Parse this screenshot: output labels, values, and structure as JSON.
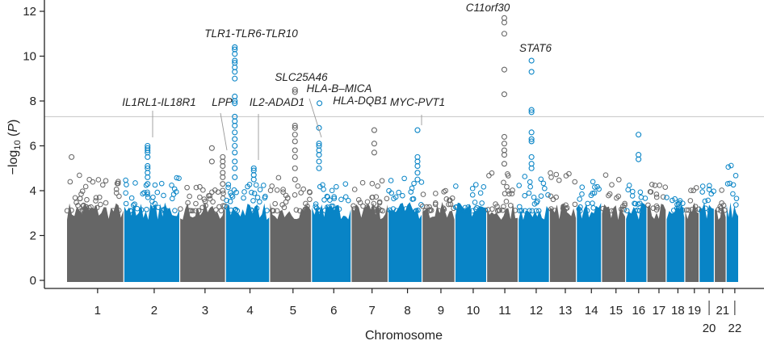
{
  "chart_data": {
    "type": "scatter",
    "xlabel": "Chromosome",
    "ylabel": "-log10 (P)",
    "ylim": [
      0,
      12.5
    ],
    "yticks": [
      0,
      2,
      4,
      6,
      8,
      10,
      12
    ],
    "significance_threshold": 7.3,
    "colors": {
      "odd": "#666666",
      "even": "#0884c6",
      "threshold": "#cccccc"
    },
    "grid": false,
    "chromosomes": [
      {
        "label": "1",
        "length_mb": 249,
        "bulk_max": 4.7
      },
      {
        "label": "2",
        "length_mb": 243,
        "bulk_max": 4.6
      },
      {
        "label": "3",
        "length_mb": 198,
        "bulk_max": 4.2
      },
      {
        "label": "4",
        "length_mb": 191,
        "bulk_max": 4.4
      },
      {
        "label": "5",
        "length_mb": 181,
        "bulk_max": 4.6
      },
      {
        "label": "6",
        "length_mb": 171,
        "bulk_max": 4.8
      },
      {
        "label": "7",
        "length_mb": 159,
        "bulk_max": 4.5
      },
      {
        "label": "8",
        "length_mb": 146,
        "bulk_max": 4.6
      },
      {
        "label": "9",
        "length_mb": 141,
        "bulk_max": 4.2
      },
      {
        "label": "10",
        "length_mb": 136,
        "bulk_max": 4.4
      },
      {
        "label": "11",
        "length_mb": 135,
        "bulk_max": 4.9
      },
      {
        "label": "12",
        "length_mb": 134,
        "bulk_max": 4.7
      },
      {
        "label": "13",
        "length_mb": 115,
        "bulk_max": 5.1
      },
      {
        "label": "14",
        "length_mb": 107,
        "bulk_max": 4.6
      },
      {
        "label": "15",
        "length_mb": 102,
        "bulk_max": 4.9
      },
      {
        "label": "16",
        "length_mb": 90,
        "bulk_max": 4.4
      },
      {
        "label": "17",
        "length_mb": 81,
        "bulk_max": 4.3
      },
      {
        "label": "18",
        "length_mb": 78,
        "bulk_max": 5.2
      },
      {
        "label": "19",
        "length_mb": 59,
        "bulk_max": 4.3
      },
      {
        "label": "20",
        "length_mb": 63,
        "bulk_max": 4.5
      },
      {
        "label": "21",
        "length_mb": 48,
        "bulk_max": 4.2
      },
      {
        "label": "22",
        "length_mb": 51,
        "bulk_max": 5.7
      }
    ],
    "hits": [
      {
        "chr": "1",
        "pos_mb": 20,
        "values": [
          5.5
        ]
      },
      {
        "chr": "3",
        "pos_mb": 140,
        "values": [
          5.9,
          5.3
        ]
      },
      {
        "chr": "7",
        "pos_mb": 100,
        "values": [
          6.7,
          6.1,
          5.7
        ]
      },
      {
        "chr": "16",
        "pos_mb": 55,
        "values": [
          6.5,
          5.6,
          5.4
        ]
      },
      {
        "chr": "2",
        "pos_mb": 103,
        "gene": "IL1RL1-IL18R1",
        "values": [
          6.0,
          5.9,
          5.8,
          5.7,
          5.5,
          5.1,
          5.0,
          4.8,
          4.6,
          4.3
        ]
      },
      {
        "chr": "3",
        "pos_mb": 188,
        "gene": "LPP",
        "values": [
          5.5,
          5.3,
          5.1,
          4.8,
          4.6,
          4.3,
          4.0
        ]
      },
      {
        "chr": "4",
        "pos_mb": 39,
        "gene": "TLR1-TLR6-TLR10",
        "values": [
          10.4,
          10.3,
          10.1,
          9.8,
          9.7,
          9.5,
          9.3,
          9.0,
          8.2,
          8.0,
          7.9,
          7.3,
          7.1,
          6.9,
          6.6,
          6.3,
          6.0,
          5.7,
          5.3,
          5.0,
          4.6
        ]
      },
      {
        "chr": "4",
        "pos_mb": 123,
        "gene": "IL2-ADAD1",
        "values": [
          5.0,
          4.9,
          4.7,
          4.5
        ]
      },
      {
        "chr": "5",
        "pos_mb": 110,
        "gene": "SLC25A46",
        "values": [
          8.5,
          8.4,
          6.9,
          6.8,
          6.5,
          6.2,
          5.8,
          5.5,
          5.0,
          4.5
        ]
      },
      {
        "chr": "6",
        "pos_mb": 31,
        "gene": "HLA-B–MICA",
        "values": [
          6.8,
          6.1,
          6.0,
          5.8,
          5.6,
          5.3,
          5.0
        ]
      },
      {
        "chr": "6",
        "pos_mb": 33,
        "gene": "HLA-DQB1",
        "values": [
          7.9
        ]
      },
      {
        "chr": "8",
        "pos_mb": 128,
        "gene": "MYC-PVT1",
        "values": [
          6.7,
          5.5,
          5.3,
          5.1,
          4.8,
          4.5
        ]
      },
      {
        "chr": "11",
        "pos_mb": 76,
        "gene": "C11orf30",
        "values": [
          11.7,
          11.5,
          11.0,
          9.4,
          8.3,
          6.4,
          6.1,
          5.8,
          5.6,
          5.2
        ]
      },
      {
        "chr": "12",
        "pos_mb": 57,
        "gene": "STAT6",
        "values": [
          9.8,
          9.3,
          7.6,
          7.5,
          6.6,
          6.3,
          6.2,
          5.5,
          5.2,
          5.0
        ]
      }
    ]
  }
}
